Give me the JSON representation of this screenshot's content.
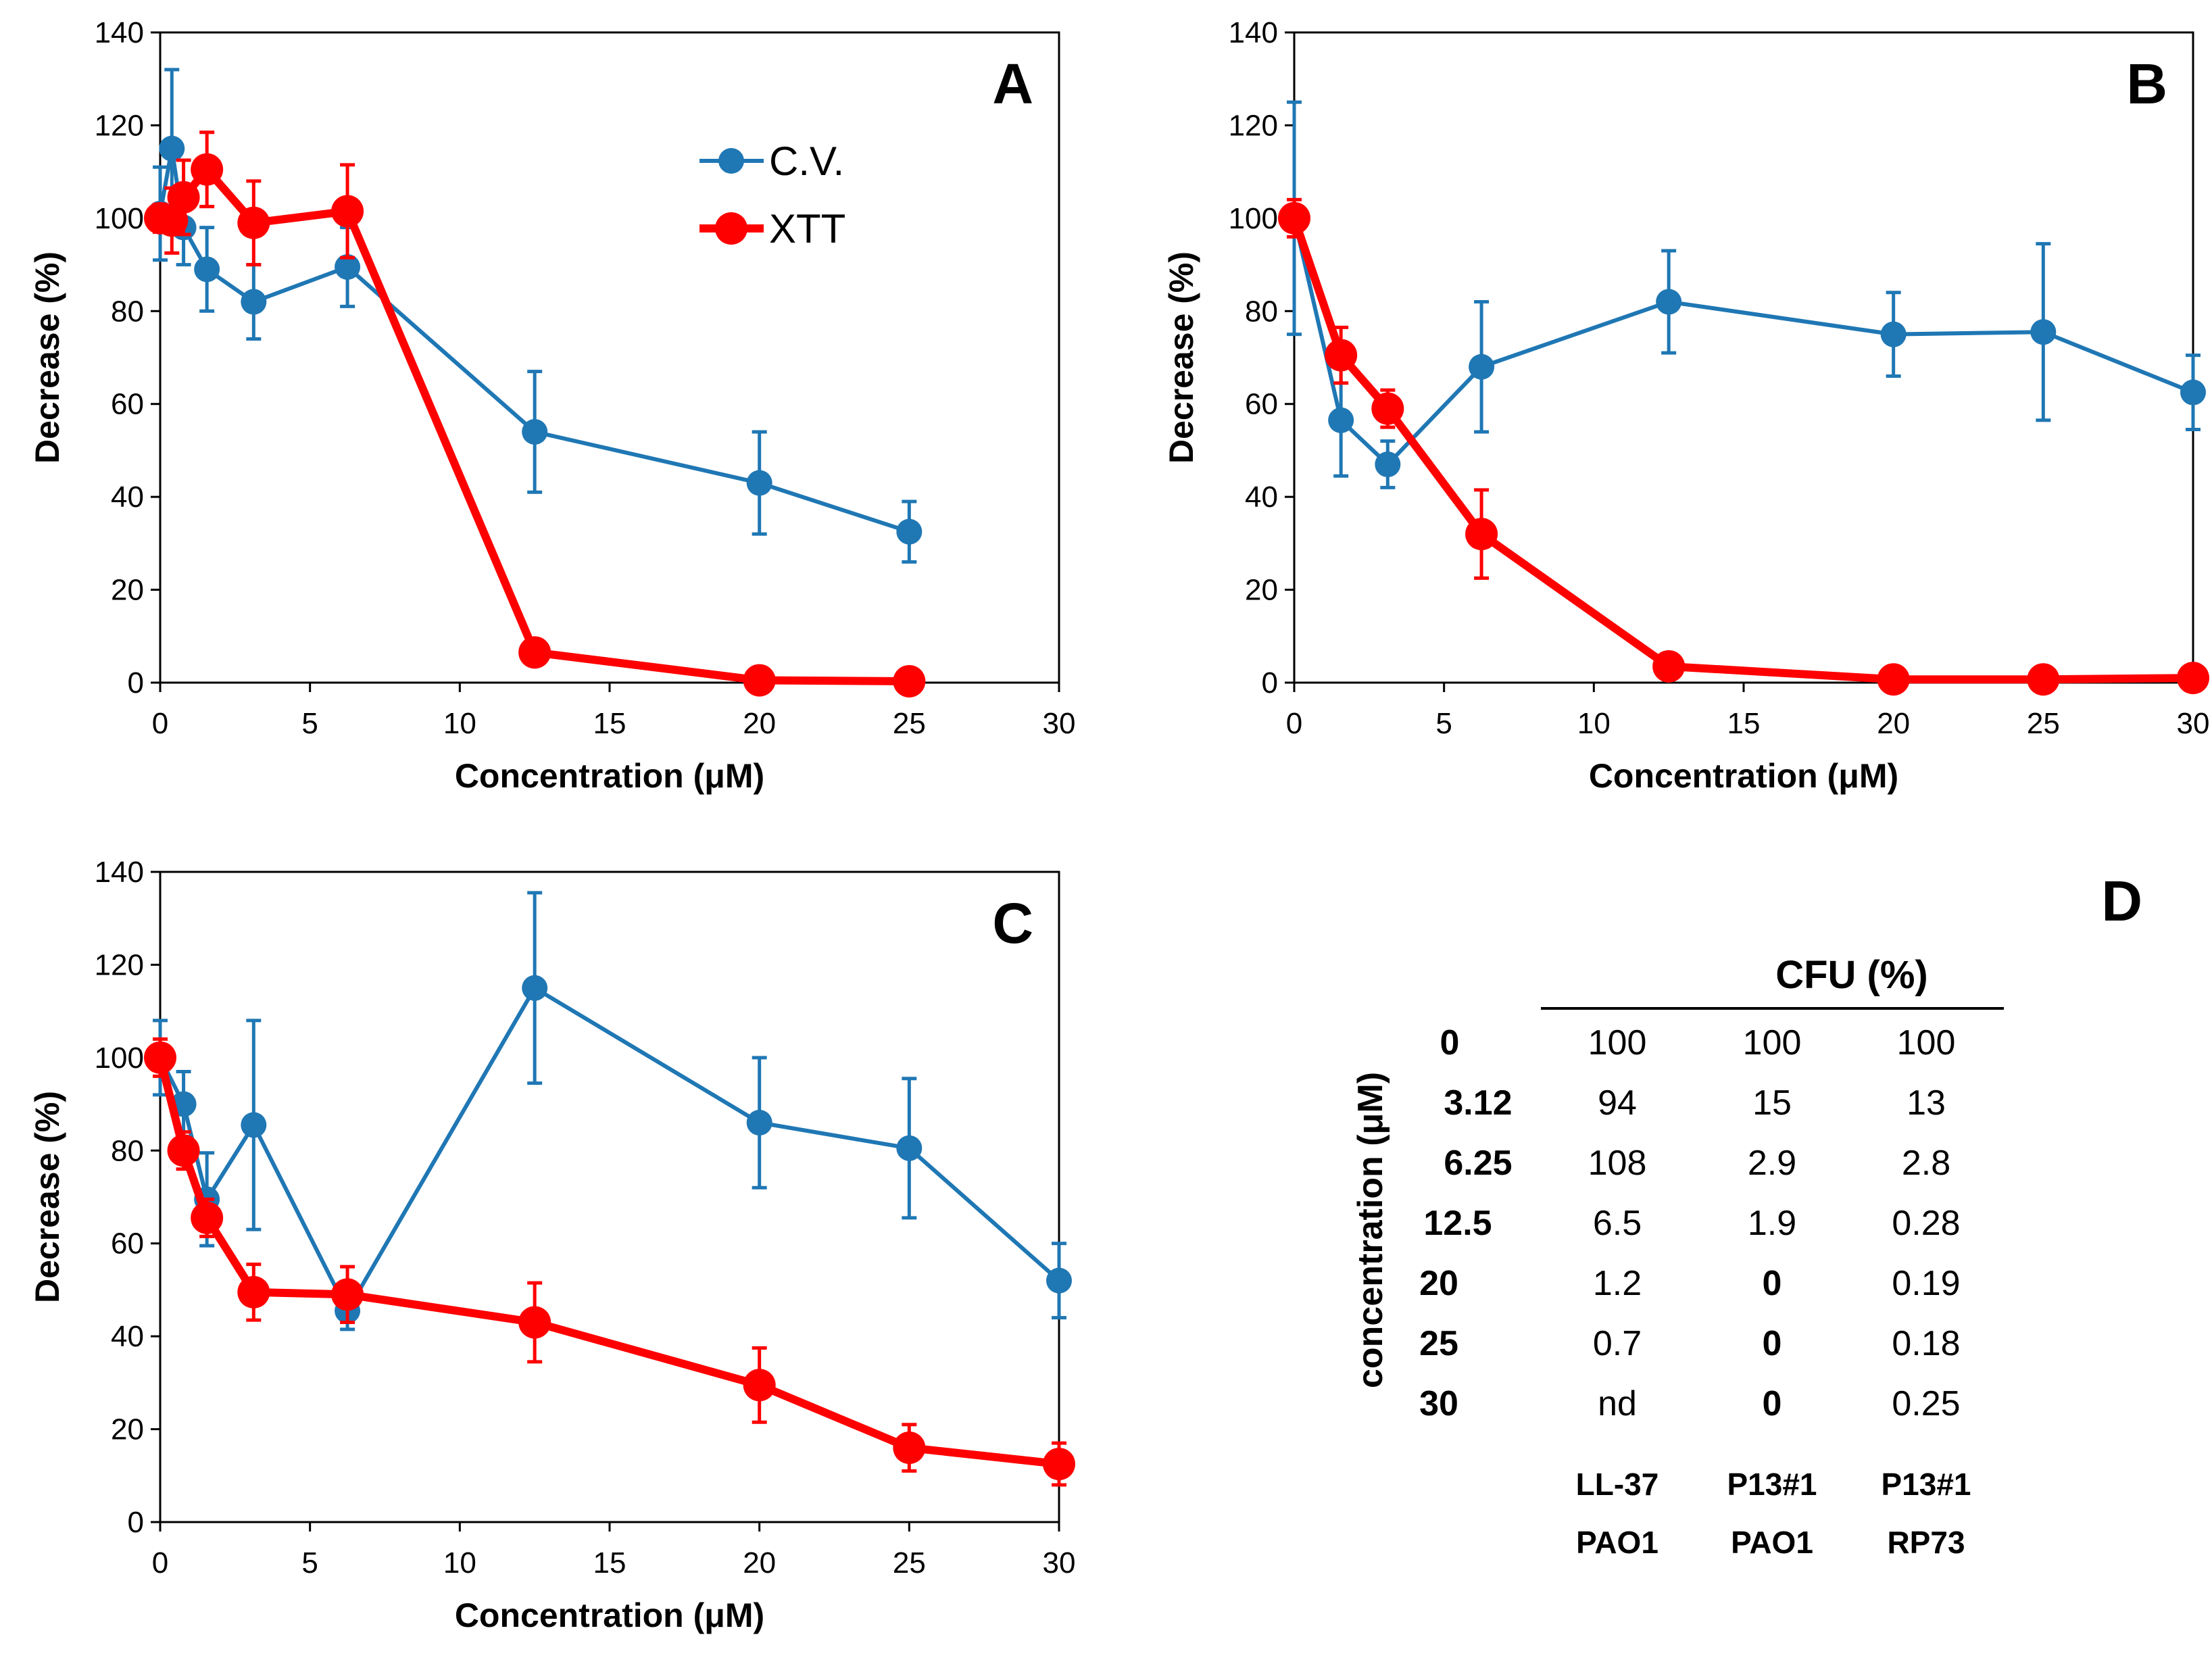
{
  "colors": {
    "cv": "#1f77b4",
    "xtt": "#ff0000",
    "axis": "#000000"
  },
  "chart_data": [
    {
      "id": "A",
      "type": "line",
      "panel_label": "A",
      "xlabel": "Concentration (μM)",
      "ylabel": "Decrease (%)",
      "xlim": [
        0,
        30
      ],
      "ylim": [
        0,
        140
      ],
      "xticks": [
        0,
        5,
        10,
        15,
        20,
        25,
        30
      ],
      "yticks": [
        0,
        20,
        40,
        60,
        80,
        100,
        120,
        140
      ],
      "legend": {
        "position": "top-right",
        "entries": [
          "C.V.",
          "XTT"
        ]
      },
      "series": [
        {
          "name": "C.V.",
          "color_key": "cv",
          "x": [
            0,
            0.39,
            0.78,
            1.56,
            3.12,
            6.25,
            12.5,
            20,
            25
          ],
          "y": [
            101,
            115,
            98,
            89,
            82,
            89.5,
            54,
            43,
            32.5
          ],
          "err": [
            10,
            17,
            8,
            9,
            8,
            8.5,
            13,
            11,
            6.5
          ]
        },
        {
          "name": "XTT",
          "color_key": "xtt",
          "x": [
            0,
            0.39,
            0.78,
            1.56,
            3.12,
            6.25,
            12.5,
            20,
            25
          ],
          "y": [
            100,
            99.5,
            104.5,
            110.5,
            99,
            101.5,
            6.5,
            0.5,
            0.3
          ],
          "err": [
            3,
            7,
            8,
            8,
            9,
            10,
            0,
            0,
            0
          ]
        }
      ]
    },
    {
      "id": "B",
      "type": "line",
      "panel_label": "B",
      "xlabel": "Concentration (μM)",
      "ylabel": "Decrease (%)",
      "xlim": [
        0,
        30
      ],
      "ylim": [
        0,
        140
      ],
      "xticks": [
        0,
        5,
        10,
        15,
        20,
        25,
        30
      ],
      "yticks": [
        0,
        20,
        40,
        60,
        80,
        100,
        120,
        140
      ],
      "series": [
        {
          "name": "C.V.",
          "color_key": "cv",
          "x": [
            0,
            1.56,
            3.12,
            6.25,
            12.5,
            20,
            25,
            30
          ],
          "y": [
            100,
            56.5,
            47,
            68,
            82,
            75,
            75.5,
            62.5
          ],
          "err": [
            25,
            12,
            5,
            14,
            11,
            9,
            19,
            8
          ]
        },
        {
          "name": "XTT",
          "color_key": "xtt",
          "x": [
            0,
            1.56,
            3.12,
            6.25,
            12.5,
            20,
            25,
            30
          ],
          "y": [
            100,
            70.5,
            59,
            32,
            3.5,
            0.7,
            0.7,
            1
          ],
          "err": [
            4,
            6,
            4,
            9.5,
            0,
            0,
            0,
            0
          ]
        }
      ]
    },
    {
      "id": "C",
      "type": "line",
      "panel_label": "C",
      "xlabel": "Concentration (μM)",
      "ylabel": "Decrease (%)",
      "xlim": [
        0,
        30
      ],
      "ylim": [
        0,
        140
      ],
      "xticks": [
        0,
        5,
        10,
        15,
        20,
        25,
        30
      ],
      "yticks": [
        0,
        20,
        40,
        60,
        80,
        100,
        120,
        140
      ],
      "series": [
        {
          "name": "C.V.",
          "color_key": "cv",
          "x": [
            0,
            0.78,
            1.56,
            3.12,
            6.25,
            12.5,
            20,
            25,
            30
          ],
          "y": [
            100,
            90,
            69.5,
            85.5,
            45.5,
            115,
            86,
            80.5,
            52
          ],
          "err": [
            8,
            7,
            10,
            22.5,
            4,
            20.5,
            14,
            15,
            8
          ]
        },
        {
          "name": "XTT",
          "color_key": "xtt",
          "x": [
            0,
            0.78,
            1.56,
            3.12,
            6.25,
            12.5,
            20,
            25,
            30
          ],
          "y": [
            100,
            80,
            65.5,
            49.5,
            49,
            43,
            29.5,
            16,
            12.5
          ],
          "err": [
            4,
            4,
            4,
            6,
            6,
            8.5,
            8,
            5,
            4.5
          ]
        }
      ]
    }
  ],
  "table_d": {
    "panel_label": "D",
    "header": "CFU (%)",
    "row_axis_label": "concentration (μM)",
    "rows": [
      {
        "conc": "0",
        "values": [
          "100",
          "100",
          "100"
        ]
      },
      {
        "conc": "3.12",
        "values": [
          "94",
          "15",
          "13"
        ]
      },
      {
        "conc": "6.25",
        "values": [
          "108",
          "2.9",
          "2.8"
        ]
      },
      {
        "conc": "12.5",
        "values": [
          "6.5",
          "1.9",
          "0.28"
        ]
      },
      {
        "conc": "20",
        "values": [
          "1.2",
          "0",
          "0.19"
        ]
      },
      {
        "conc": "25",
        "values": [
          "0.7",
          "0",
          "0.18"
        ]
      },
      {
        "conc": "30",
        "values": [
          "nd",
          "0",
          "0.25"
        ]
      }
    ],
    "column_labels": [
      {
        "peptide": "LL-37",
        "strain": "PAO1"
      },
      {
        "peptide": "P13#1",
        "strain": "PAO1"
      },
      {
        "peptide": "P13#1",
        "strain": "RP73"
      }
    ]
  }
}
